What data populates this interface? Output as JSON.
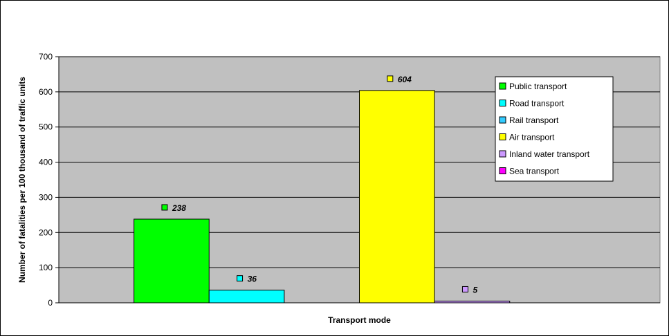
{
  "chart_data": {
    "type": "bar",
    "title": "",
    "xlabel": "Transport mode",
    "ylabel": "Number of fatalities per 100 thousand of traffic units",
    "ylim": [
      0,
      700
    ],
    "yticks": [
      "0",
      "100",
      "200",
      "300",
      "400",
      "500",
      "600",
      "700"
    ],
    "grid": true,
    "legend_position": "top-right",
    "plot_background": "#c0c0c0",
    "series": [
      {
        "name": "Public transport",
        "value": 238,
        "label": "238",
        "color": "#00ff00"
      },
      {
        "name": "Road transport",
        "value": 36,
        "label": "36",
        "color": "#00ffff"
      },
      {
        "name": "Rail transport",
        "value": null,
        "label": "",
        "color": "#33ccff"
      },
      {
        "name": "Air transport",
        "value": 604,
        "label": "604",
        "color": "#ffff00"
      },
      {
        "name": "Inland water transport",
        "value": 5,
        "label": "5",
        "color": "#cc99ff"
      },
      {
        "name": "Sea transport",
        "value": null,
        "label": "",
        "color": "#ff00ff"
      }
    ]
  }
}
